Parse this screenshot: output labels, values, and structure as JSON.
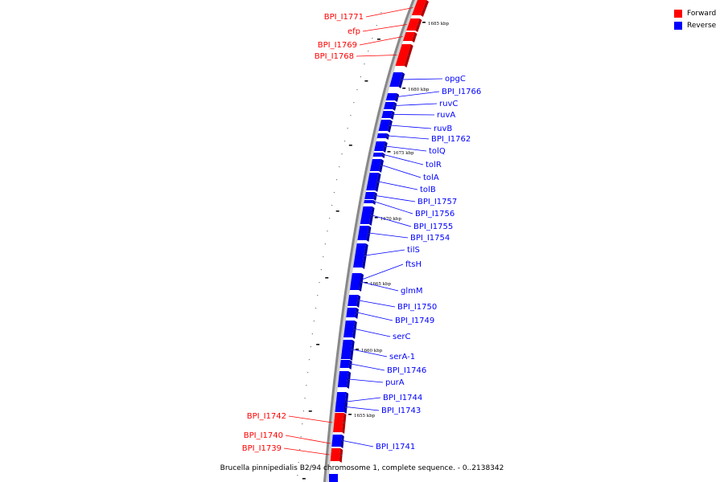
{
  "colors": {
    "forward": "#ff0000",
    "reverse": "#0000ff",
    "axis": "#888888"
  },
  "legend": [
    {
      "label": "Forward",
      "color": "#ff0000"
    },
    {
      "label": "Reverse",
      "color": "#0000ff"
    }
  ],
  "caption": "Brucella pinnipedialis B2/94 chromosome 1, complete sequence. - 0..2138342",
  "kbp_ticks": [
    {
      "kbp": 1685,
      "label": "1685 kbp"
    },
    {
      "kbp": 1680,
      "label": "1680 kbp"
    },
    {
      "kbp": 1675,
      "label": "1675 kbp"
    },
    {
      "kbp": 1670,
      "label": "1670 kbp"
    },
    {
      "kbp": 1665,
      "label": "1665 kbp"
    },
    {
      "kbp": 1660,
      "label": "1660 kbp"
    },
    {
      "kbp": 1655,
      "label": "1655 kbp"
    }
  ],
  "forward_genes": [
    {
      "name": "BPI_I1771"
    },
    {
      "name": "efp"
    },
    {
      "name": "BPI_I1769"
    },
    {
      "name": "BPI_I1768"
    },
    {
      "name": "BPI_I1742"
    },
    {
      "name": "BPI_I1740"
    },
    {
      "name": "BPI_I1739"
    }
  ],
  "reverse_genes": [
    {
      "name": "opgC"
    },
    {
      "name": "BPI_I1766"
    },
    {
      "name": "ruvC"
    },
    {
      "name": "ruvA"
    },
    {
      "name": "ruvB"
    },
    {
      "name": "BPI_I1762"
    },
    {
      "name": "tolQ"
    },
    {
      "name": "tolR"
    },
    {
      "name": "tolA"
    },
    {
      "name": "tolB"
    },
    {
      "name": "BPI_I1757"
    },
    {
      "name": "BPI_I1756"
    },
    {
      "name": "BPI_I1755"
    },
    {
      "name": "BPI_I1754"
    },
    {
      "name": "tilS"
    },
    {
      "name": "ftsH"
    },
    {
      "name": "glmM"
    },
    {
      "name": "BPI_I1750"
    },
    {
      "name": "BPI_I1749"
    },
    {
      "name": "serC"
    },
    {
      "name": "serA-1"
    },
    {
      "name": "BPI_I1746"
    },
    {
      "name": "purA"
    },
    {
      "name": "BPI_I1744"
    },
    {
      "name": "BPI_I1743"
    },
    {
      "name": "BPI_I1741"
    }
  ]
}
